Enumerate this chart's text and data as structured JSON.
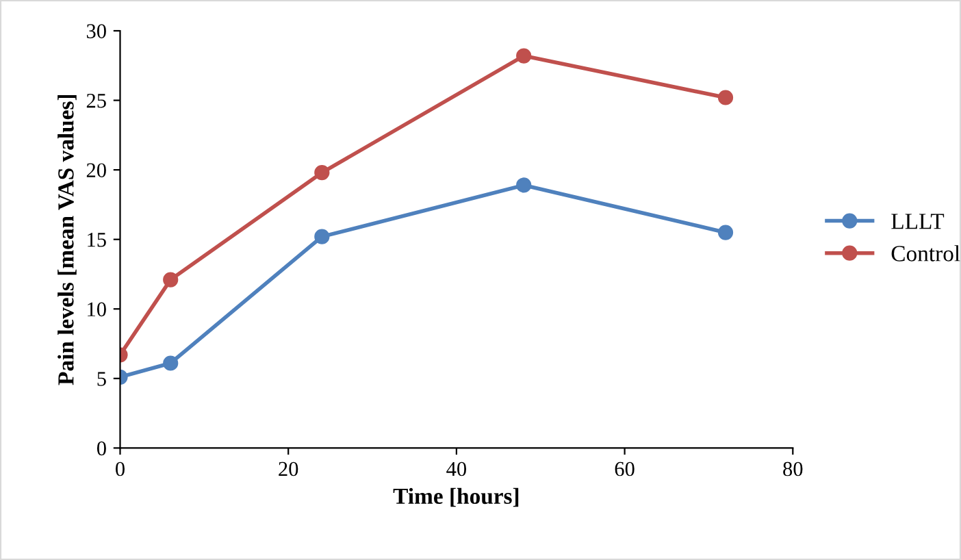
{
  "chart_data": {
    "type": "line",
    "xlabel": "Time [hours]",
    "ylabel": "Pain levels [mean VAS values]",
    "x": [
      0,
      6,
      24,
      48,
      72
    ],
    "series": [
      {
        "name": "LLLT",
        "color": "#4f81bd",
        "values": [
          5.1,
          6.1,
          15.2,
          18.9,
          15.5
        ]
      },
      {
        "name": "Control",
        "color": "#c0504d",
        "values": [
          6.7,
          12.1,
          19.8,
          28.2,
          25.2
        ]
      }
    ],
    "xlim": [
      0,
      80
    ],
    "xticks": [
      0,
      20,
      40,
      60,
      80
    ],
    "ylim": [
      0,
      30
    ],
    "yticks": [
      0,
      5,
      10,
      15,
      20,
      25,
      30
    ],
    "grid": false,
    "legend": "right",
    "marker": "circle",
    "line_style": "solid"
  }
}
